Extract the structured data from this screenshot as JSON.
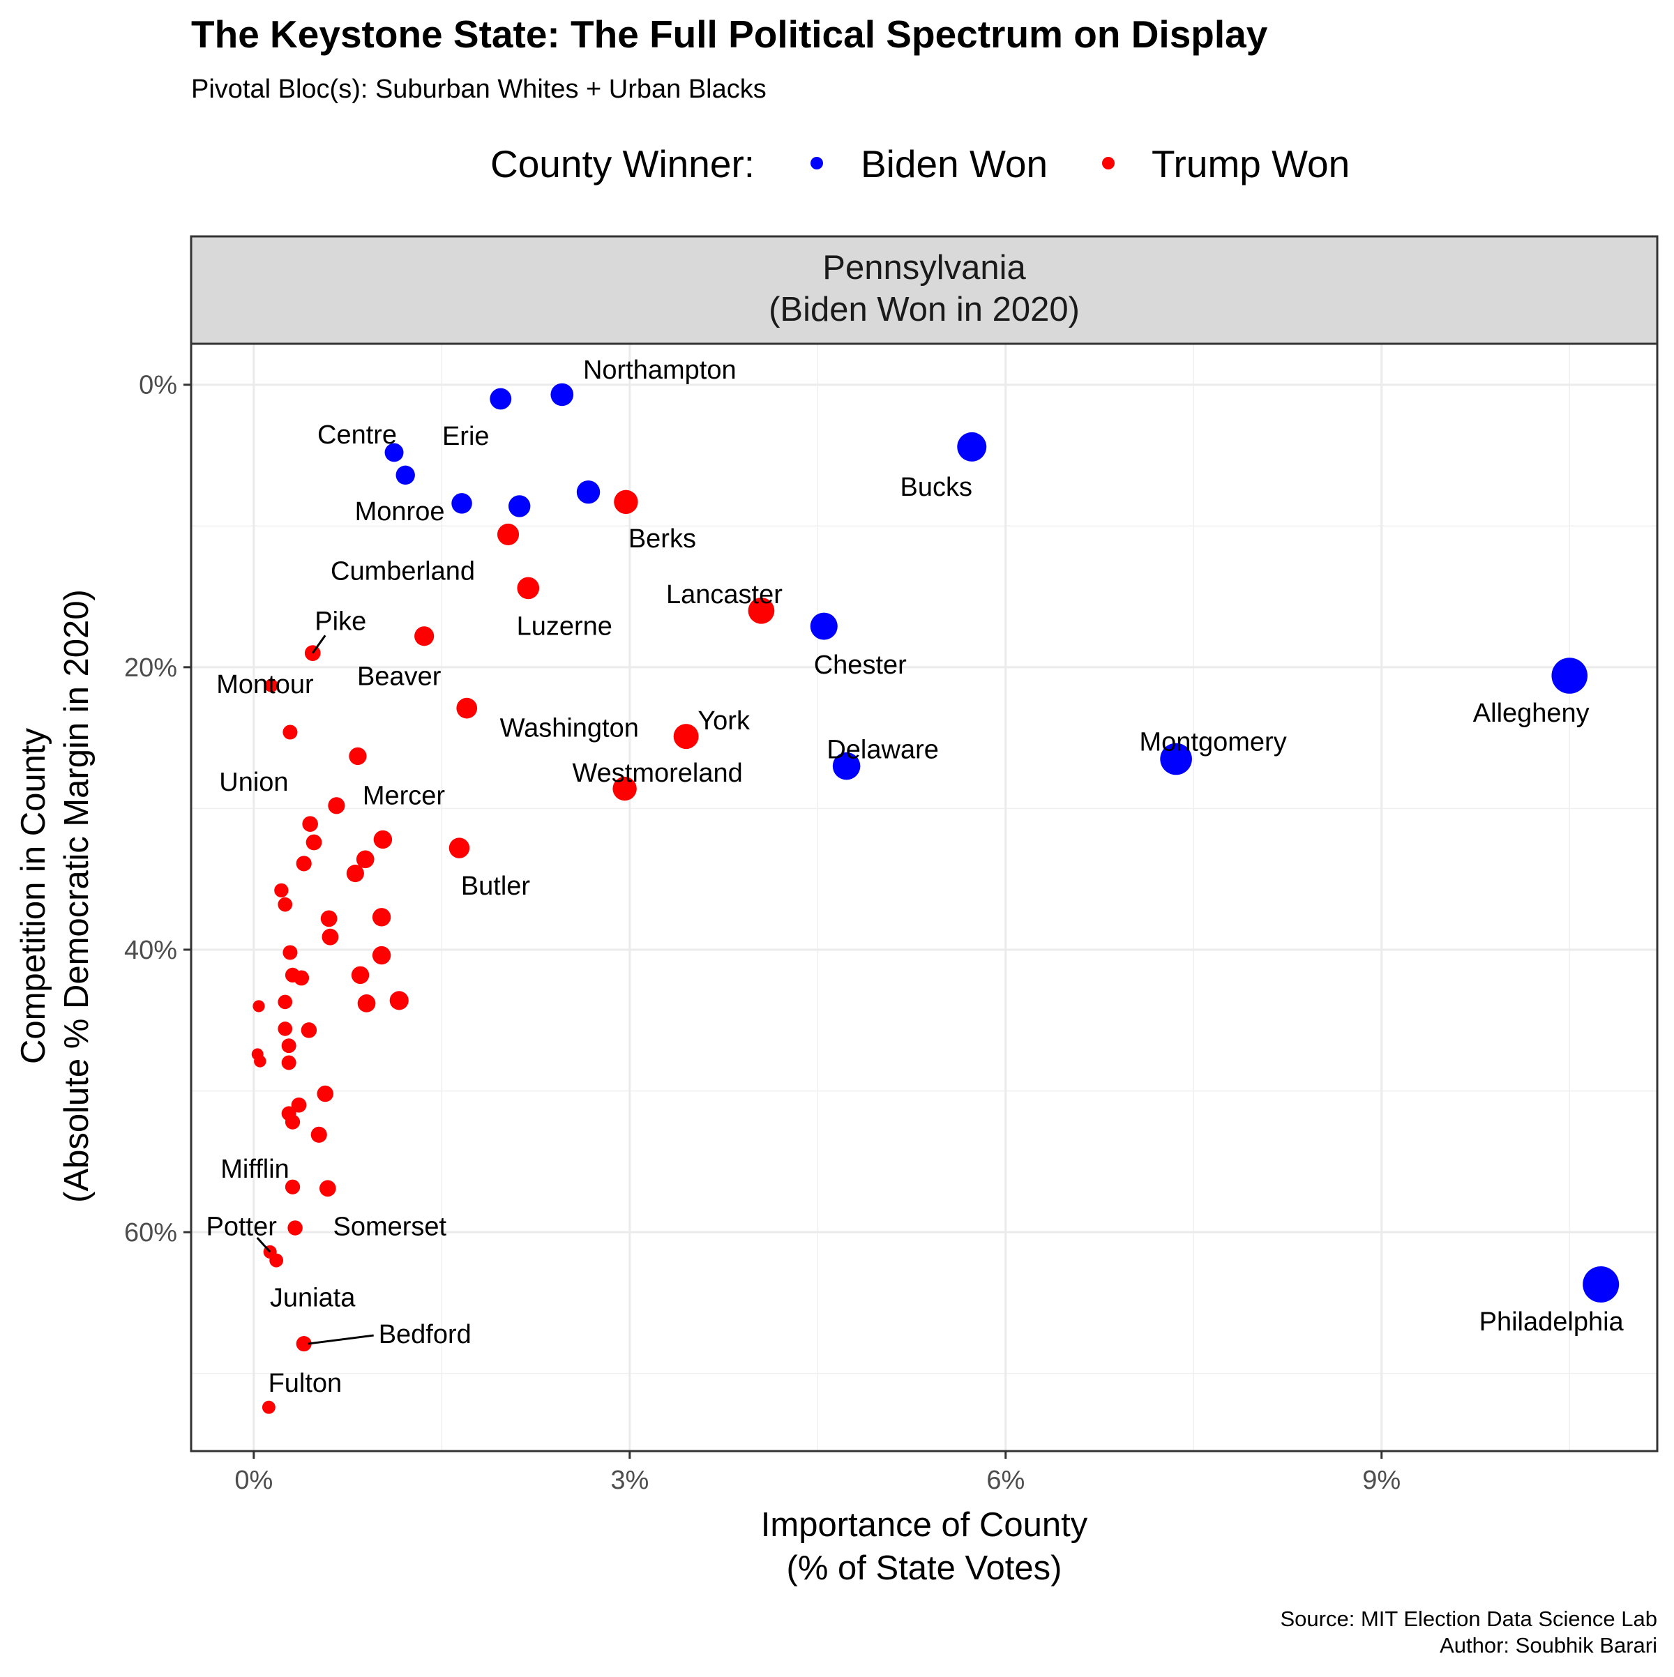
{
  "chart_data": {
    "type": "scatter",
    "title": "The Keystone State: The Full Political Spectrum on Display",
    "subtitle": "Pivotal Bloc(s): Suburban Whites + Urban Blacks",
    "legend": {
      "title": "County Winner:",
      "placement": "top",
      "entries": [
        {
          "key": "biden",
          "label": "Biden Won",
          "color": "#0000FF"
        },
        {
          "key": "trump",
          "label": "Trump Won",
          "color": "#FF0000"
        }
      ]
    },
    "facet": {
      "line1": "Pennsylvania",
      "line2": "(Biden Won in 2020)"
    },
    "xlabel": {
      "line1": "Importance of County",
      "line2": "(% of State Votes)"
    },
    "ylabel": {
      "line1": "Competition in County",
      "line2": "(Absolute % Democratic Margin in 2020)"
    },
    "xlim": [
      -0.5,
      11.2
    ],
    "ylim": [
      75.5,
      -2.9
    ],
    "x_ticks": [
      {
        "value": 0,
        "label": "0%"
      },
      {
        "value": 3,
        "label": "3%"
      },
      {
        "value": 6,
        "label": "6%"
      },
      {
        "value": 9,
        "label": "9%"
      }
    ],
    "y_ticks": [
      {
        "value": 0,
        "label": "0%"
      },
      {
        "value": 20,
        "label": "20%"
      },
      {
        "value": 40,
        "label": "40%"
      },
      {
        "value": 60,
        "label": "60%"
      }
    ],
    "grid": true,
    "caption": {
      "line1": "Source: MIT Election Data Science Lab",
      "line2": "Author: Soubhik Barari"
    },
    "points": [
      {
        "name": "Northampton",
        "x": 2.46,
        "y": 0.7,
        "winner": "biden",
        "label": "Northampton"
      },
      {
        "name": "Erie",
        "x": 1.97,
        "y": 1.0,
        "winner": "biden",
        "label": "Erie"
      },
      {
        "name": "Centre",
        "x": 1.12,
        "y": 4.8,
        "winner": "biden",
        "label": "Centre"
      },
      {
        "name": "Bucks",
        "x": 5.73,
        "y": 4.4,
        "winner": "biden",
        "label": "Bucks"
      },
      {
        "name": "unlabeled-1",
        "x": 1.21,
        "y": 6.4,
        "winner": "biden",
        "label": ""
      },
      {
        "name": "Monroe",
        "x": 1.66,
        "y": 8.4,
        "winner": "biden",
        "label": "Monroe"
      },
      {
        "name": "unlabeled-2",
        "x": 2.12,
        "y": 8.6,
        "winner": "biden",
        "label": ""
      },
      {
        "name": "unlabeled-3",
        "x": 2.67,
        "y": 7.6,
        "winner": "biden",
        "label": ""
      },
      {
        "name": "Berks",
        "x": 2.97,
        "y": 8.3,
        "winner": "trump",
        "label": "Berks"
      },
      {
        "name": "Cumberland",
        "x": 2.03,
        "y": 10.6,
        "winner": "trump",
        "label": "Cumberland"
      },
      {
        "name": "Luzerne",
        "x": 2.19,
        "y": 14.4,
        "winner": "trump",
        "label": "Luzerne"
      },
      {
        "name": "Lancaster",
        "x": 4.05,
        "y": 16.0,
        "winner": "trump",
        "label": "Lancaster"
      },
      {
        "name": "Chester",
        "x": 4.55,
        "y": 17.1,
        "winner": "biden",
        "label": "Chester"
      },
      {
        "name": "Beaver",
        "x": 1.36,
        "y": 17.8,
        "winner": "trump",
        "label": "Beaver"
      },
      {
        "name": "Pike",
        "x": 0.47,
        "y": 19.0,
        "winner": "trump",
        "label": "Pike"
      },
      {
        "name": "Montour",
        "x": 0.14,
        "y": 21.3,
        "winner": "trump",
        "label": "Montour"
      },
      {
        "name": "Allegheny",
        "x": 10.5,
        "y": 20.6,
        "winner": "biden",
        "label": "Allegheny"
      },
      {
        "name": "Washington",
        "x": 1.7,
        "y": 22.9,
        "winner": "trump",
        "label": "Washington"
      },
      {
        "name": "York",
        "x": 3.45,
        "y": 24.9,
        "winner": "trump",
        "label": "York"
      },
      {
        "name": "Union",
        "x": 0.29,
        "y": 24.6,
        "winner": "trump",
        "label": "Union"
      },
      {
        "name": "Montgomery",
        "x": 7.36,
        "y": 26.5,
        "winner": "biden",
        "label": "Montgomery"
      },
      {
        "name": "Delaware",
        "x": 4.73,
        "y": 27.0,
        "winner": "biden",
        "label": "Delaware"
      },
      {
        "name": "Mercer",
        "x": 0.83,
        "y": 26.3,
        "winner": "trump",
        "label": "Mercer"
      },
      {
        "name": "Westmoreland",
        "x": 2.96,
        "y": 28.6,
        "winner": "trump",
        "label": "Westmoreland"
      },
      {
        "name": "unlabeled-4",
        "x": 0.66,
        "y": 29.8,
        "winner": "trump",
        "label": ""
      },
      {
        "name": "unlabeled-5",
        "x": 0.45,
        "y": 31.1,
        "winner": "trump",
        "label": ""
      },
      {
        "name": "unlabeled-6",
        "x": 1.03,
        "y": 32.2,
        "winner": "trump",
        "label": ""
      },
      {
        "name": "unlabeled-7",
        "x": 0.48,
        "y": 32.4,
        "winner": "trump",
        "label": ""
      },
      {
        "name": "Butler",
        "x": 1.64,
        "y": 32.8,
        "winner": "trump",
        "label": "Butler"
      },
      {
        "name": "unlabeled-8",
        "x": 0.89,
        "y": 33.6,
        "winner": "trump",
        "label": ""
      },
      {
        "name": "unlabeled-9",
        "x": 0.4,
        "y": 33.9,
        "winner": "trump",
        "label": ""
      },
      {
        "name": "unlabeled-10",
        "x": 0.81,
        "y": 34.6,
        "winner": "trump",
        "label": ""
      },
      {
        "name": "unlabeled-11",
        "x": 0.22,
        "y": 35.8,
        "winner": "trump",
        "label": ""
      },
      {
        "name": "unlabeled-12",
        "x": 0.25,
        "y": 36.8,
        "winner": "trump",
        "label": ""
      },
      {
        "name": "unlabeled-13",
        "x": 0.6,
        "y": 37.8,
        "winner": "trump",
        "label": ""
      },
      {
        "name": "unlabeled-14",
        "x": 1.02,
        "y": 37.7,
        "winner": "trump",
        "label": ""
      },
      {
        "name": "unlabeled-15",
        "x": 0.61,
        "y": 39.1,
        "winner": "trump",
        "label": ""
      },
      {
        "name": "unlabeled-16",
        "x": 0.29,
        "y": 40.2,
        "winner": "trump",
        "label": ""
      },
      {
        "name": "unlabeled-17",
        "x": 1.02,
        "y": 40.4,
        "winner": "trump",
        "label": ""
      },
      {
        "name": "unlabeled-18",
        "x": 0.31,
        "y": 41.8,
        "winner": "trump",
        "label": ""
      },
      {
        "name": "unlabeled-19",
        "x": 0.38,
        "y": 42.0,
        "winner": "trump",
        "label": ""
      },
      {
        "name": "unlabeled-20",
        "x": 0.85,
        "y": 41.8,
        "winner": "trump",
        "label": ""
      },
      {
        "name": "unlabeled-21",
        "x": 0.25,
        "y": 43.7,
        "winner": "trump",
        "label": ""
      },
      {
        "name": "unlabeled-22",
        "x": 0.9,
        "y": 43.8,
        "winner": "trump",
        "label": ""
      },
      {
        "name": "unlabeled-23",
        "x": 1.16,
        "y": 43.6,
        "winner": "trump",
        "label": ""
      },
      {
        "name": "unlabeled-24",
        "x": 0.04,
        "y": 44.0,
        "winner": "trump",
        "label": ""
      },
      {
        "name": "unlabeled-25",
        "x": 0.25,
        "y": 45.6,
        "winner": "trump",
        "label": ""
      },
      {
        "name": "unlabeled-26",
        "x": 0.44,
        "y": 45.7,
        "winner": "trump",
        "label": ""
      },
      {
        "name": "unlabeled-27",
        "x": 0.28,
        "y": 46.8,
        "winner": "trump",
        "label": ""
      },
      {
        "name": "unlabeled-28",
        "x": 0.03,
        "y": 47.4,
        "winner": "trump",
        "label": ""
      },
      {
        "name": "unlabeled-29",
        "x": 0.05,
        "y": 47.9,
        "winner": "trump",
        "label": ""
      },
      {
        "name": "unlabeled-30",
        "x": 0.28,
        "y": 48.0,
        "winner": "trump",
        "label": ""
      },
      {
        "name": "unlabeled-31",
        "x": 0.57,
        "y": 50.2,
        "winner": "trump",
        "label": ""
      },
      {
        "name": "unlabeled-32",
        "x": 0.36,
        "y": 51.0,
        "winner": "trump",
        "label": ""
      },
      {
        "name": "unlabeled-33",
        "x": 0.28,
        "y": 51.6,
        "winner": "trump",
        "label": ""
      },
      {
        "name": "unlabeled-34",
        "x": 0.31,
        "y": 52.2,
        "winner": "trump",
        "label": ""
      },
      {
        "name": "unlabeled-35",
        "x": 0.52,
        "y": 53.1,
        "winner": "trump",
        "label": ""
      },
      {
        "name": "Mifflin",
        "x": 0.31,
        "y": 56.8,
        "winner": "trump",
        "label": "Mifflin"
      },
      {
        "name": "Somerset",
        "x": 0.59,
        "y": 56.9,
        "winner": "trump",
        "label": "Somerset"
      },
      {
        "name": "unlabeled-36",
        "x": 0.33,
        "y": 59.7,
        "winner": "trump",
        "label": ""
      },
      {
        "name": "Potter",
        "x": 0.13,
        "y": 61.4,
        "winner": "trump",
        "label": "Potter"
      },
      {
        "name": "Juniata",
        "x": 0.18,
        "y": 62.0,
        "winner": "trump",
        "label": "Juniata"
      },
      {
        "name": "Philadelphia",
        "x": 10.75,
        "y": 63.7,
        "winner": "biden",
        "label": "Philadelphia"
      },
      {
        "name": "Bedford",
        "x": 0.4,
        "y": 67.9,
        "winner": "trump",
        "label": "Bedford"
      },
      {
        "name": "Fulton",
        "x": 0.12,
        "y": 72.4,
        "winner": "trump",
        "label": "Fulton"
      }
    ]
  }
}
